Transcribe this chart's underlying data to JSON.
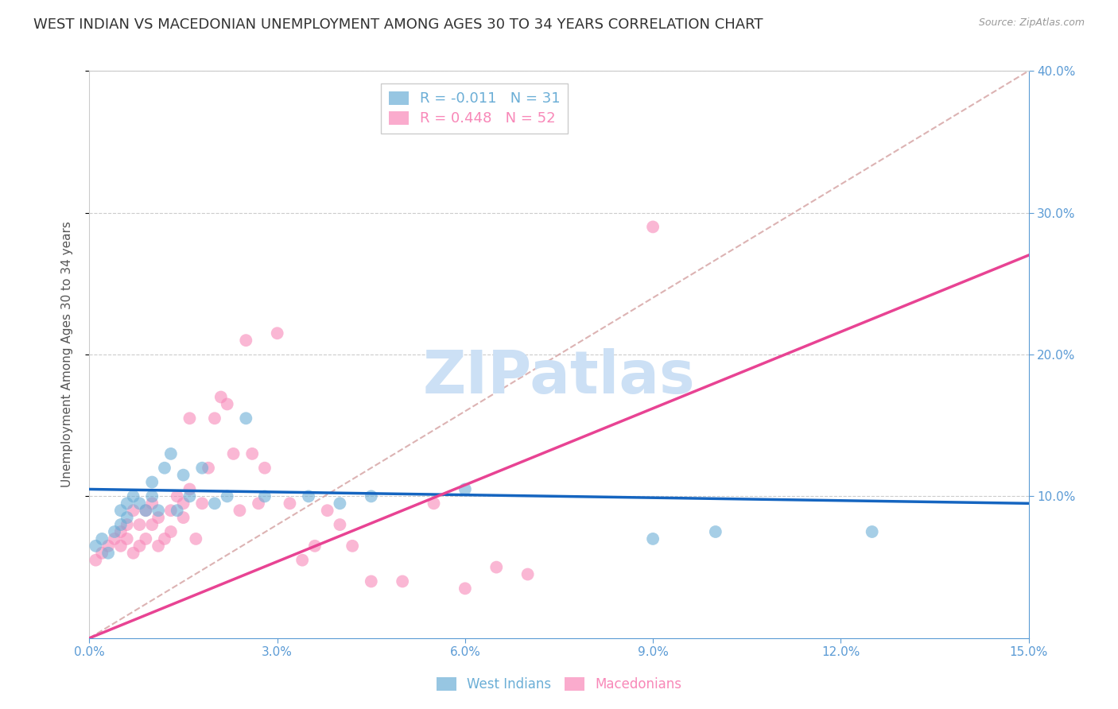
{
  "title": "WEST INDIAN VS MACEDONIAN UNEMPLOYMENT AMONG AGES 30 TO 34 YEARS CORRELATION CHART",
  "source": "Source: ZipAtlas.com",
  "ylabel": "Unemployment Among Ages 30 to 34 years",
  "xlim": [
    0.0,
    0.15
  ],
  "ylim": [
    0.0,
    0.4
  ],
  "xticks": [
    0.0,
    0.03,
    0.06,
    0.09,
    0.12,
    0.15
  ],
  "xticklabels": [
    "0.0%",
    "3.0%",
    "6.0%",
    "9.0%",
    "12.0%",
    "15.0%"
  ],
  "yticks": [
    0.1,
    0.2,
    0.3,
    0.4
  ],
  "yticklabels": [
    "10.0%",
    "20.0%",
    "30.0%",
    "40.0%"
  ],
  "west_indian_color": "#6baed6",
  "macedonian_color": "#f888b8",
  "west_indian_label": "West Indians",
  "macedonian_label": "Macedonians",
  "R_west": -0.011,
  "N_west": 31,
  "R_mac": 0.448,
  "N_mac": 52,
  "wi_line_color": "#1565c0",
  "mac_line_color": "#e84393",
  "diag_color": "#d4a0a0",
  "west_indian_x": [
    0.001,
    0.002,
    0.003,
    0.004,
    0.005,
    0.005,
    0.006,
    0.006,
    0.007,
    0.008,
    0.009,
    0.01,
    0.01,
    0.011,
    0.012,
    0.013,
    0.014,
    0.015,
    0.016,
    0.018,
    0.02,
    0.022,
    0.025,
    0.028,
    0.035,
    0.04,
    0.045,
    0.06,
    0.09,
    0.1,
    0.125
  ],
  "west_indian_y": [
    0.065,
    0.07,
    0.06,
    0.075,
    0.08,
    0.09,
    0.085,
    0.095,
    0.1,
    0.095,
    0.09,
    0.1,
    0.11,
    0.09,
    0.12,
    0.13,
    0.09,
    0.115,
    0.1,
    0.12,
    0.095,
    0.1,
    0.155,
    0.1,
    0.1,
    0.095,
    0.1,
    0.105,
    0.07,
    0.075,
    0.075
  ],
  "macedonian_x": [
    0.001,
    0.002,
    0.003,
    0.004,
    0.005,
    0.005,
    0.006,
    0.006,
    0.007,
    0.007,
    0.008,
    0.008,
    0.009,
    0.009,
    0.01,
    0.01,
    0.011,
    0.011,
    0.012,
    0.013,
    0.013,
    0.014,
    0.015,
    0.015,
    0.016,
    0.016,
    0.017,
    0.018,
    0.019,
    0.02,
    0.021,
    0.022,
    0.023,
    0.024,
    0.025,
    0.026,
    0.027,
    0.028,
    0.03,
    0.032,
    0.034,
    0.036,
    0.038,
    0.04,
    0.042,
    0.045,
    0.05,
    0.055,
    0.06,
    0.065,
    0.07,
    0.09
  ],
  "macedonian_y": [
    0.055,
    0.06,
    0.065,
    0.07,
    0.065,
    0.075,
    0.07,
    0.08,
    0.06,
    0.09,
    0.065,
    0.08,
    0.07,
    0.09,
    0.08,
    0.095,
    0.065,
    0.085,
    0.07,
    0.09,
    0.075,
    0.1,
    0.085,
    0.095,
    0.105,
    0.155,
    0.07,
    0.095,
    0.12,
    0.155,
    0.17,
    0.165,
    0.13,
    0.09,
    0.21,
    0.13,
    0.095,
    0.12,
    0.215,
    0.095,
    0.055,
    0.065,
    0.09,
    0.08,
    0.065,
    0.04,
    0.04,
    0.095,
    0.035,
    0.05,
    0.045,
    0.29
  ],
  "background_color": "#ffffff",
  "grid_color": "#cccccc",
  "axis_color": "#5b9bd5",
  "title_fontsize": 13,
  "label_fontsize": 11,
  "tick_fontsize": 11,
  "watermark": "ZIPatlas",
  "watermark_color": "#cce0f5"
}
